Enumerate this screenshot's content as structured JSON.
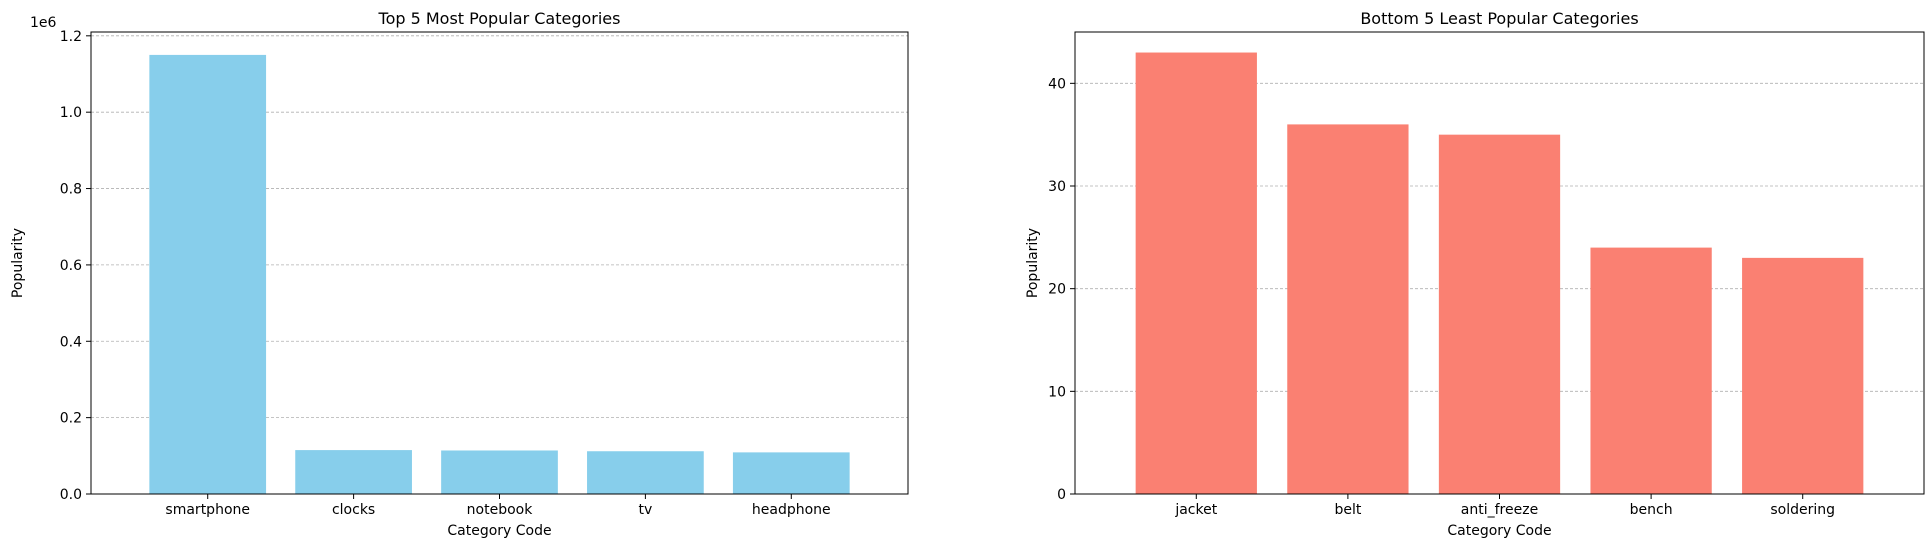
{
  "chart_data": [
    {
      "type": "bar",
      "title": "Top 5 Most Popular Categories",
      "xlabel": "Category Code",
      "ylabel": "Popularity",
      "categories": [
        "smartphone",
        "clocks",
        "notebook",
        "tv",
        "headphone"
      ],
      "values": [
        1150000,
        115000,
        114000,
        112000,
        109000
      ],
      "ylim": [
        0,
        1210000
      ],
      "yticks": [
        0.0,
        0.2,
        0.4,
        0.6,
        0.8,
        1.0,
        1.2
      ],
      "ytick_labels": [
        "0.0",
        "0.2",
        "0.4",
        "0.6",
        "0.8",
        "1.0",
        "1.2"
      ],
      "y_multiplier_label": "1e6",
      "y_scale": 1000000,
      "bar_color": "#87CEEB",
      "grid": "y-dashed"
    },
    {
      "type": "bar",
      "title": "Bottom 5 Least Popular Categories",
      "xlabel": "Category Code",
      "ylabel": "Popularity",
      "categories": [
        "jacket",
        "belt",
        "anti_freeze",
        "bench",
        "soldering"
      ],
      "values": [
        43,
        36,
        35,
        24,
        23
      ],
      "ylim": [
        0,
        45
      ],
      "yticks": [
        0,
        10,
        20,
        30,
        40
      ],
      "ytick_labels": [
        "0",
        "10",
        "20",
        "30",
        "40"
      ],
      "y_multiplier_label": "",
      "y_scale": 1,
      "bar_color": "#FA8072",
      "grid": "y-dashed"
    }
  ]
}
